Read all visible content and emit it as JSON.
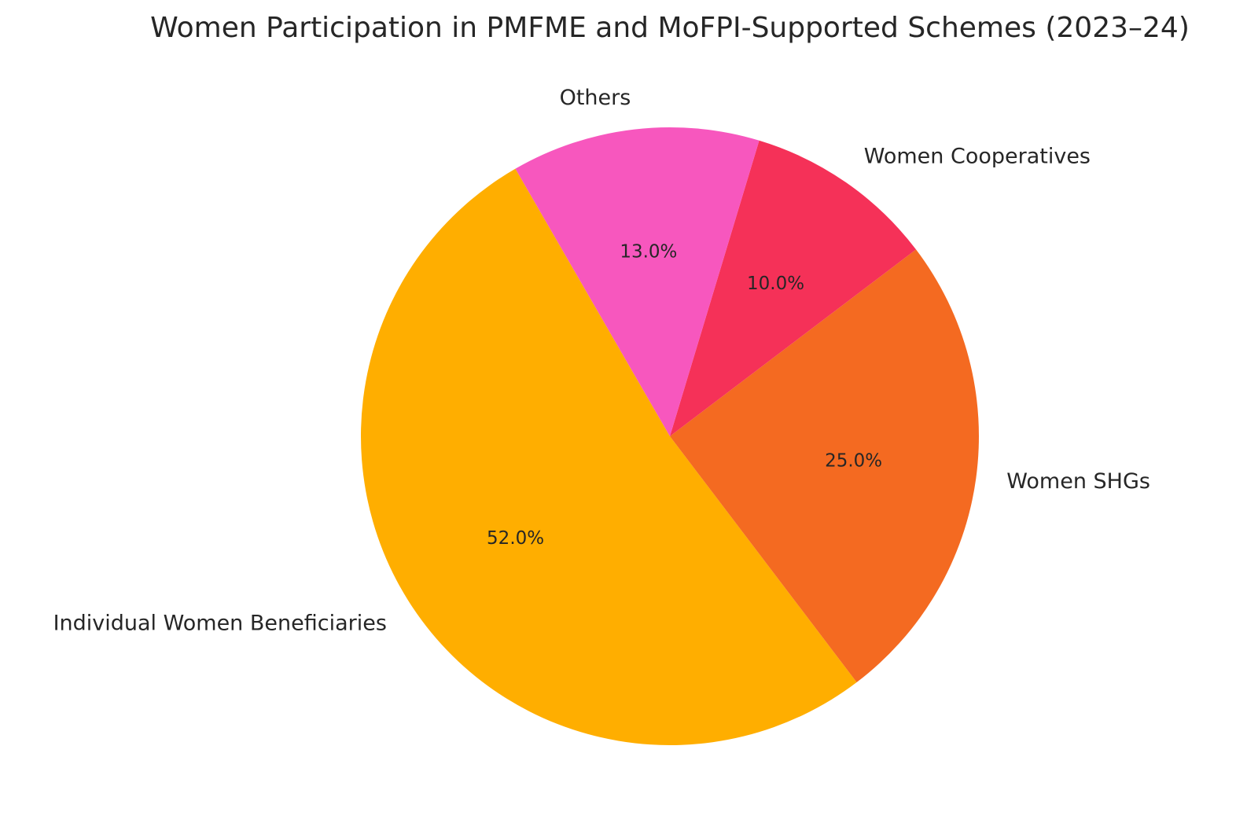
{
  "chart_data": {
    "type": "pie",
    "title": "Women Participation in PMFME and MoFPI-Supported Schemes (2023–24)",
    "start_angle_deg": 120,
    "direction": "counterclockwise",
    "slices": [
      {
        "label": "Individual Women Beneficiaries",
        "value": 52.0,
        "pct_label": "52.0%",
        "color": "#FFAE00"
      },
      {
        "label": "Women SHGs",
        "value": 25.0,
        "pct_label": "25.0%",
        "color": "#F46A21"
      },
      {
        "label": "Women Cooperatives",
        "value": 10.0,
        "pct_label": "10.0%",
        "color": "#F53158"
      },
      {
        "label": "Others",
        "value": 13.0,
        "pct_label": "13.0%",
        "color": "#F757BE"
      }
    ]
  }
}
